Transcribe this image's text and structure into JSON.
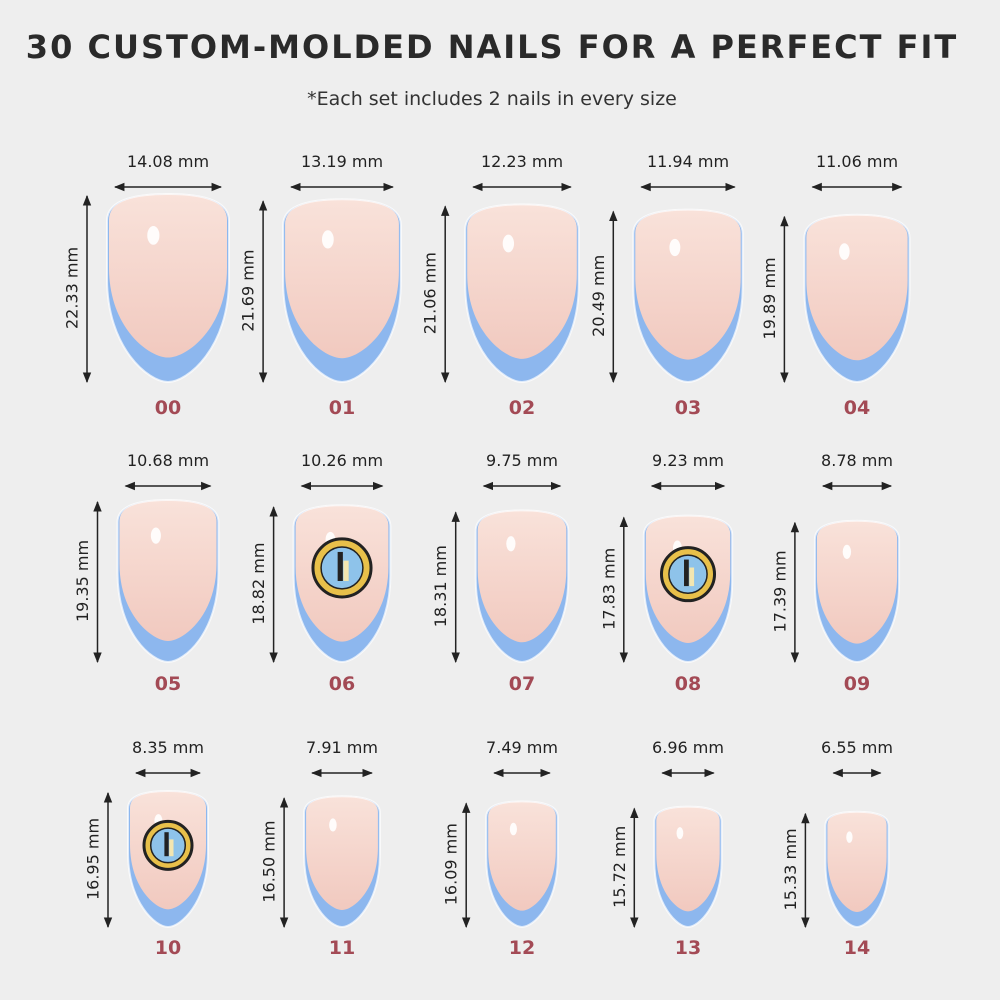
{
  "header": {
    "title": "30 CUSTOM-MOLDED NAILS FOR A PERFECT FIT",
    "subtitle": "*Each set includes 2 nails in every size"
  },
  "nails": [
    {
      "size": "00",
      "width": "14.08 mm",
      "length": "22.33 mm",
      "logo": false
    },
    {
      "size": "01",
      "width": "13.19 mm",
      "length": "21.69 mm",
      "logo": false
    },
    {
      "size": "02",
      "width": "12.23 mm",
      "length": "21.06 mm",
      "logo": false
    },
    {
      "size": "03",
      "width": "11.94 mm",
      "length": "20.49 mm",
      "logo": false
    },
    {
      "size": "04",
      "width": "11.06 mm",
      "length": "19.89 mm",
      "logo": false
    },
    {
      "size": "05",
      "width": "10.68 mm",
      "length": "19.35 mm",
      "logo": false
    },
    {
      "size": "06",
      "width": "10.26 mm",
      "length": "18.82 mm",
      "logo": true
    },
    {
      "size": "07",
      "width": "9.75 mm",
      "length": "18.31 mm",
      "logo": false
    },
    {
      "size": "08",
      "width": "9.23 mm",
      "length": "17.83 mm",
      "logo": true
    },
    {
      "size": "09",
      "width": "8.78 mm",
      "length": "17.39 mm",
      "logo": false
    },
    {
      "size": "10",
      "width": "8.35 mm",
      "length": "16.95 mm",
      "logo": true
    },
    {
      "size": "11",
      "width": "7.91 mm",
      "length": "16.50 mm",
      "logo": false
    },
    {
      "size": "12",
      "width": "7.49 mm",
      "length": "16.09 mm",
      "logo": false
    },
    {
      "size": "13",
      "width": "6.96 mm",
      "length": "15.72 mm",
      "logo": false
    },
    {
      "size": "14",
      "width": "6.55 mm",
      "length": "15.33 mm",
      "logo": false
    }
  ]
}
